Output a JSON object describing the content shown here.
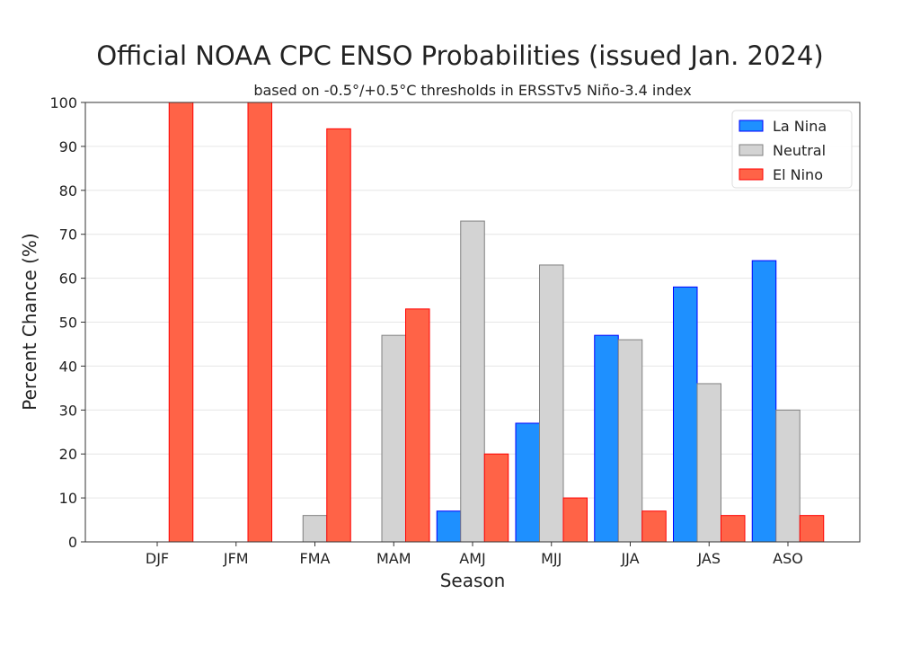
{
  "chart_data": {
    "type": "bar",
    "title": "Official NOAA CPC ENSO Probabilities (issued Jan. 2024)",
    "subtitle": "based on -0.5°/+0.5°C thresholds in ERSSTv5 Niño-3.4 index",
    "xlabel": "Season",
    "ylabel": "Percent Chance (%)",
    "ylim": [
      0,
      100
    ],
    "yticks": [
      0,
      10,
      20,
      30,
      40,
      50,
      60,
      70,
      80,
      90,
      100
    ],
    "grid": "horizontal",
    "legend_position": "top-right",
    "categories": [
      "DJF",
      "JFM",
      "FMA",
      "MAM",
      "AMJ",
      "MJJ",
      "JJA",
      "JAS",
      "ASO"
    ],
    "series": [
      {
        "name": "La Nina",
        "color": "#1e90ff",
        "edge": "#0000ff",
        "values": [
          0,
          0,
          0,
          0,
          7,
          27,
          47,
          58,
          64
        ]
      },
      {
        "name": "Neutral",
        "color": "#d3d3d3",
        "edge": "#808080",
        "values": [
          0,
          0,
          6,
          47,
          73,
          63,
          46,
          36,
          30
        ]
      },
      {
        "name": "El Nino",
        "color": "#ff6347",
        "edge": "#ff0000",
        "values": [
          100,
          100,
          94,
          53,
          20,
          10,
          7,
          6,
          6
        ]
      }
    ]
  }
}
